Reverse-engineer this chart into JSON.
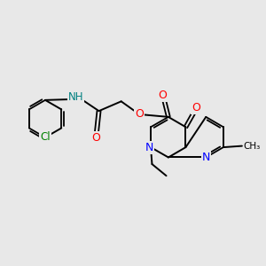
{
  "background_color": "#e8e8e8",
  "bond_color": "#000000",
  "atom_colors": {
    "O": "#ff0000",
    "N": "#0000ff",
    "Cl": "#008000",
    "NH": "#008080",
    "C": "#000000"
  },
  "figsize": [
    3.0,
    3.0
  ],
  "dpi": 100
}
